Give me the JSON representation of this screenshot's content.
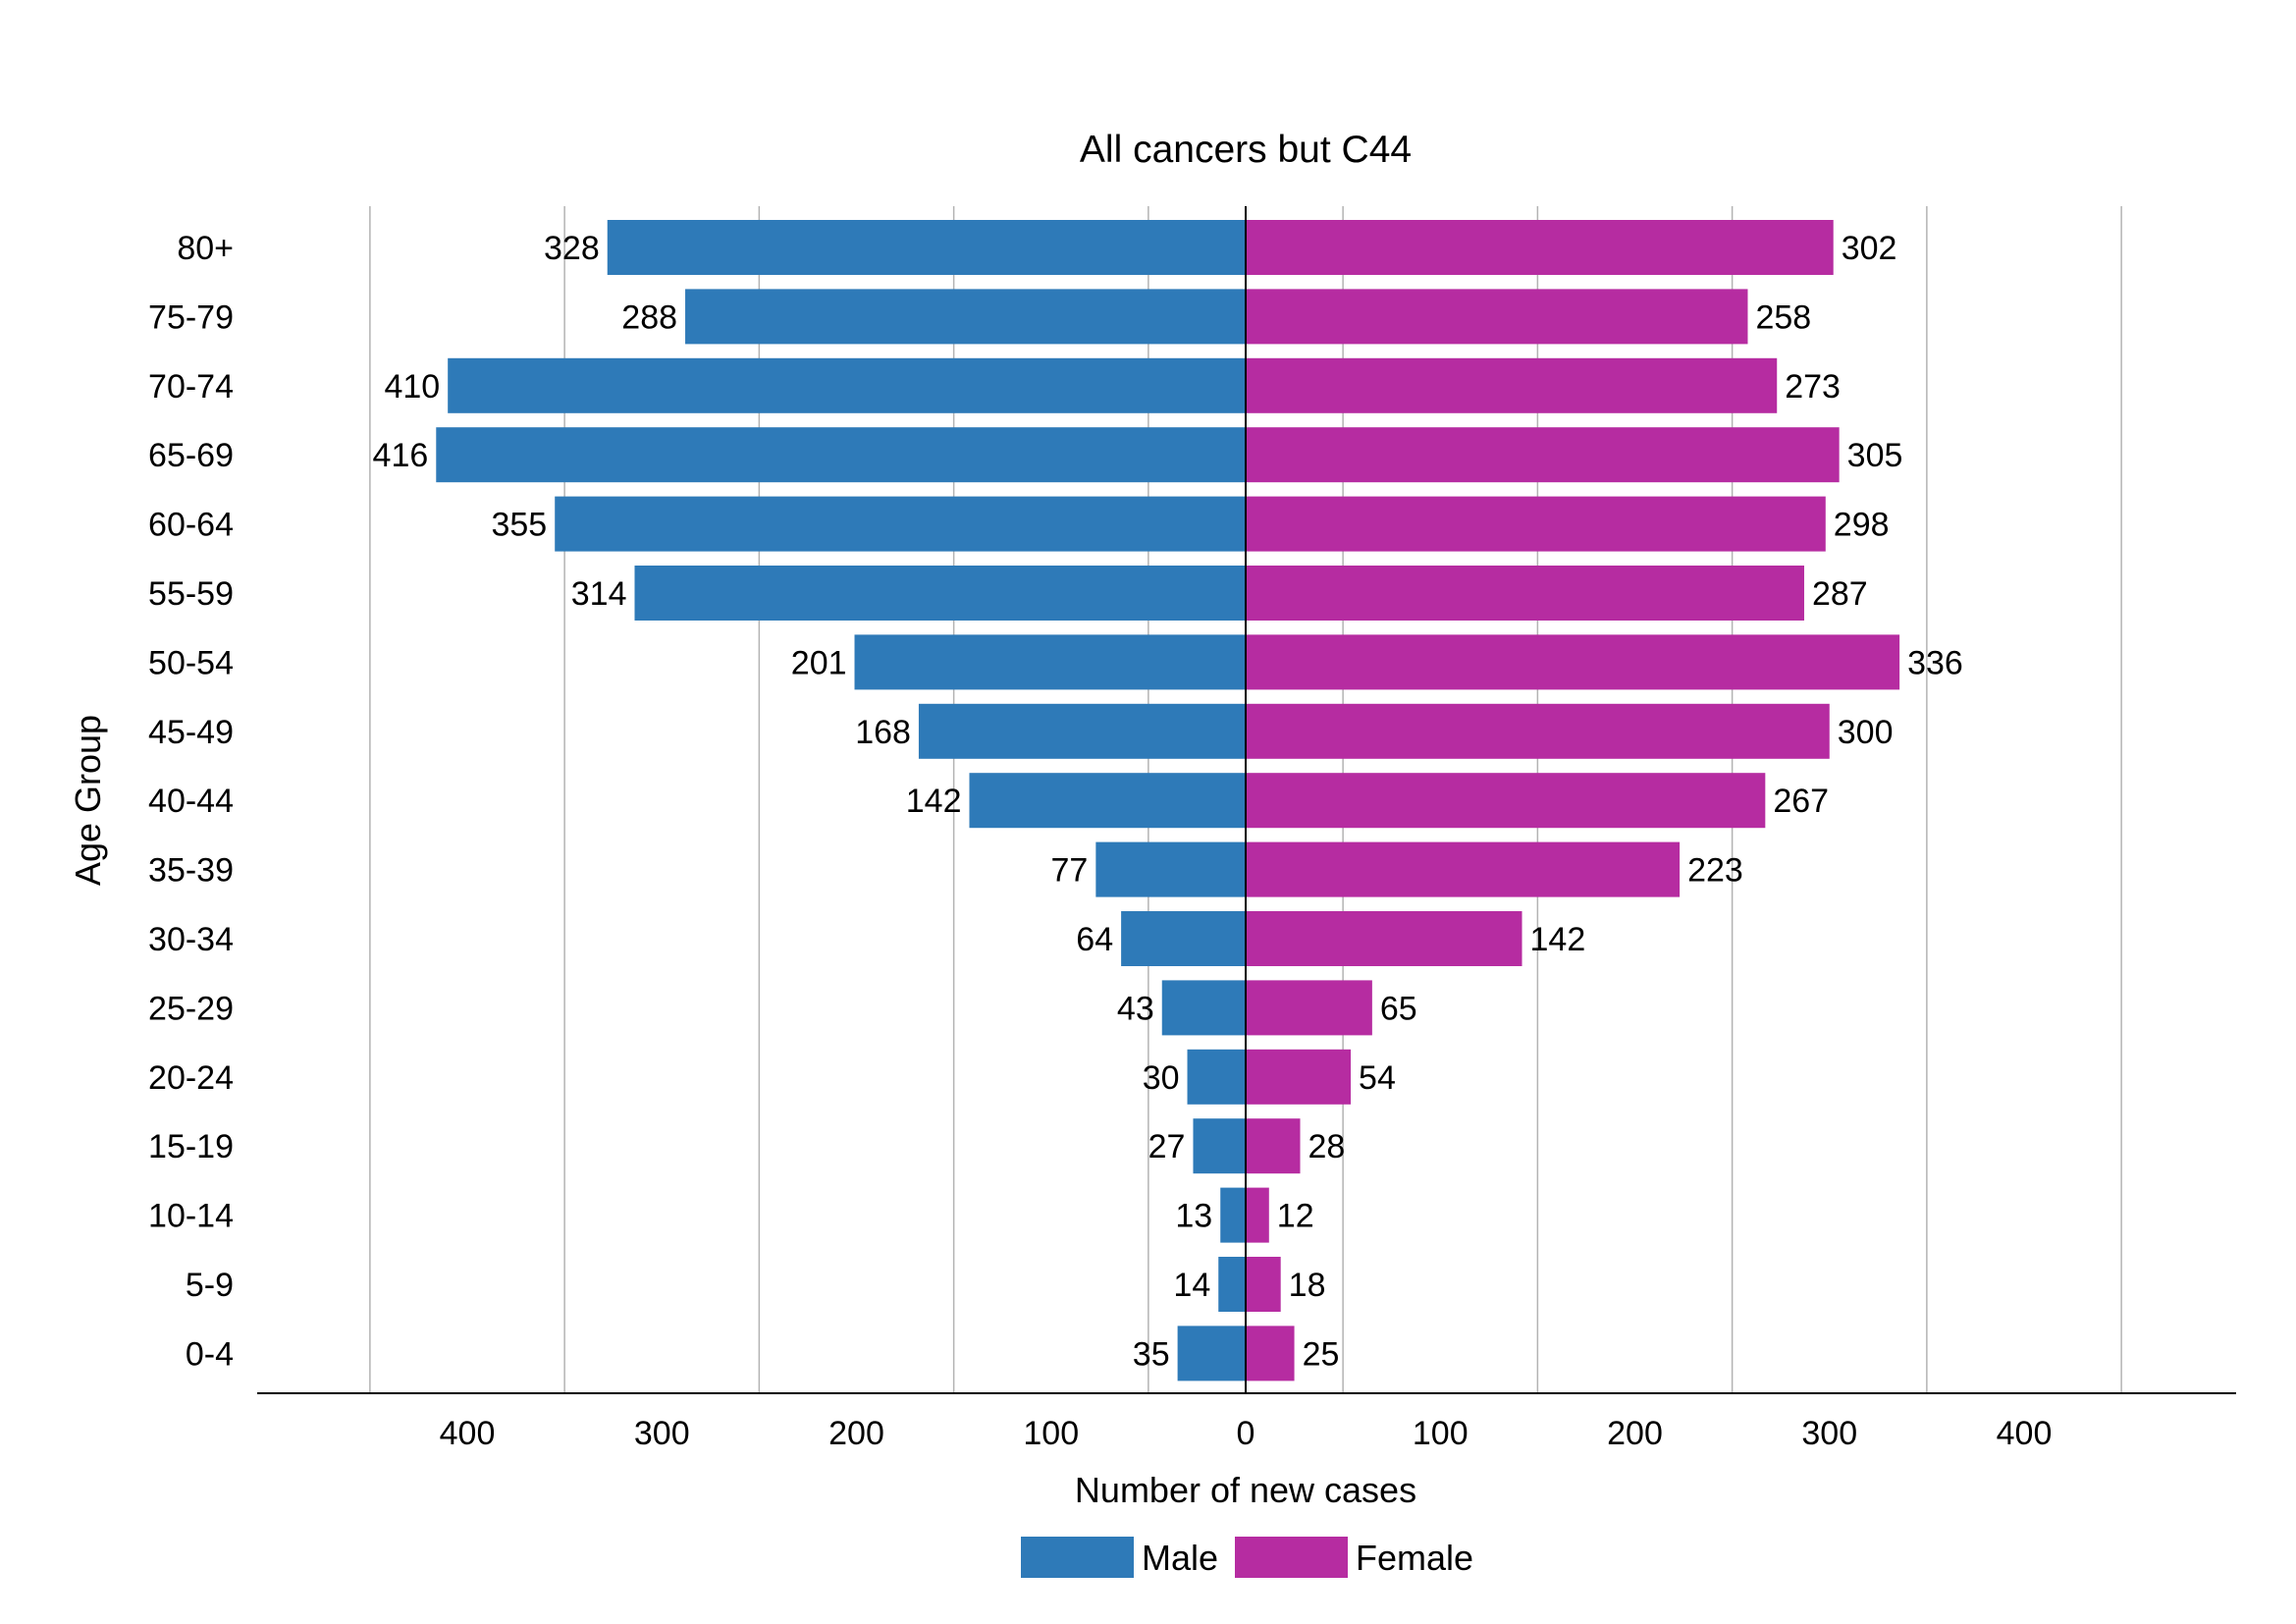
{
  "chart_data": {
    "type": "bar",
    "orientation": "horizontal-population-pyramid",
    "title": "All cancers but C44",
    "xlabel": "Number of new cases",
    "ylabel": "Age Group",
    "categories": [
      "80+",
      "75-79",
      "70-74",
      "65-69",
      "60-64",
      "55-59",
      "50-54",
      "45-49",
      "40-44",
      "35-39",
      "30-34",
      "25-29",
      "20-24",
      "15-19",
      "10-14",
      "5-9",
      "0-4"
    ],
    "series": [
      {
        "name": "Male",
        "side": "left",
        "color": "#2e7ab8",
        "values": [
          328,
          288,
          410,
          416,
          355,
          314,
          201,
          168,
          142,
          77,
          64,
          43,
          30,
          27,
          13,
          14,
          35
        ]
      },
      {
        "name": "Female",
        "side": "right",
        "color": "#b62ca1",
        "values": [
          302,
          258,
          273,
          305,
          298,
          287,
          336,
          300,
          267,
          223,
          142,
          65,
          54,
          28,
          12,
          18,
          25
        ]
      }
    ],
    "x_ticks": [
      -400,
      -300,
      -200,
      -100,
      0,
      100,
      200,
      300,
      400
    ],
    "x_tick_labels": [
      "400",
      "300",
      "200",
      "100",
      "0",
      "100",
      "200",
      "300",
      "400"
    ],
    "xlim": [
      -508,
      508
    ],
    "gridlines_at": [
      -450,
      -350,
      -250,
      -150,
      -50,
      50,
      150,
      250,
      350,
      450
    ],
    "grid": "vertical",
    "legend": "bottom-center"
  }
}
